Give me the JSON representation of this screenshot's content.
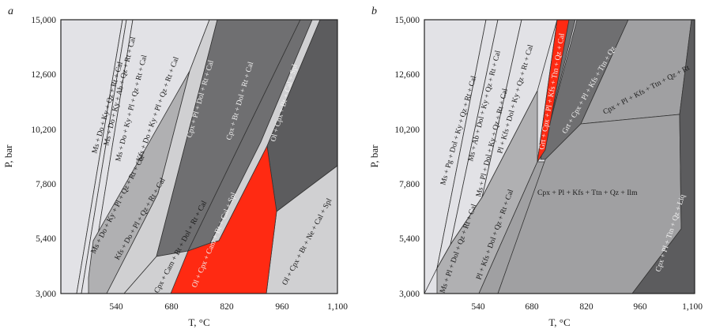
{
  "colors": {
    "vlight": "#e2e2e6",
    "light": "#d0d0d2",
    "mid": "#b0b0b2",
    "midb": "#a0a0a2",
    "dark": "#6f6f71",
    "vdark": "#5c5c5e",
    "red": "#ff2a12",
    "white": "#ffffff"
  },
  "panels": [
    {
      "label": "a",
      "y_ticks": [
        "15,000",
        "12,600",
        "10,200",
        "7,800",
        "5,400",
        "3,000"
      ],
      "x_ticks": [
        "540",
        "680",
        "820",
        "960",
        "1,100"
      ],
      "xlabel": "T, °C",
      "ylabel": "P, bar",
      "field_labels": [
        "Ms + Do + Ky + Qz + Rt + Cal",
        "Ms + Do + Ky + Ab + Qz + Rt + Cal",
        "Ms + Do + Ky + Pl + Qz + Rt + Cal",
        "Kfs + Do + Ky + Pl + Qz + Rt + Cal",
        "Ms + Do + Ky + Pl + Qz + Rt + Cal",
        "Kfs + Do + Pl + Qz + Rt + Cal",
        "Cpx + Pl + Dol + Rt + Cal",
        "Cpx + Bt + Dol + Rt + Cal",
        "Ol + Cpx + Bt + Cal + Spl",
        "Cpx + Cam + Bt + Dol + Rt + Cal",
        "Ol + Cpx + Cam + Bt + Cal + Spl",
        "Ol + Cpx + Bt + Ne + Cal + Spl"
      ]
    },
    {
      "label": "b",
      "y_ticks": [
        "15,000",
        "12,600",
        "10,200",
        "7,800",
        "5,400",
        "3,000"
      ],
      "x_ticks": [
        "540",
        "680",
        "820",
        "960",
        "1,100"
      ],
      "xlabel": "T, °C",
      "ylabel": "P, bar",
      "field_labels": [
        "Ms + Pg + Dol + Ky + Qz + Rt + Cal",
        "Ms + Ab + Dol + Ky + Qz + Rt + Cal",
        "Ms + Pl + Dol + Ky + Qz + Rt + Cal",
        "Pl + Kfs + Dol + Ky + Qz + Rt + Cal",
        "Ms + Pl + Dol + Qz + Rt + Cal",
        "Pl + Kfs + Dol + Qz + Rt + Cal",
        "Grt + Cpx + Pl + Kfs + Ttn + Qz + Cal",
        "Grt + Cpx + Pl + Kfs + Ttn + Qz",
        "Cpx + Pl + Kfs + Ttn + Qz + Rt",
        "Cpx + Pl + Kfs + Ttn + Qz + Ilm",
        "Cpx + Pl + Ttn + Qz + Liq"
      ]
    }
  ]
}
